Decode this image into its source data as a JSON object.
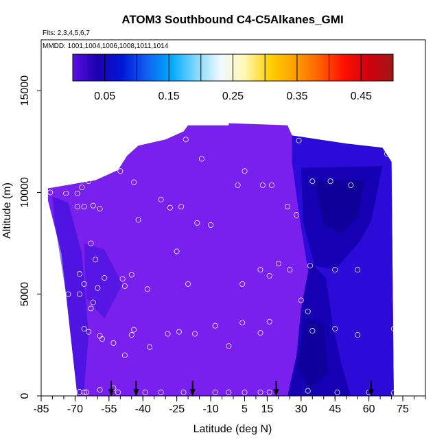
{
  "chart_data": {
    "type": "heatmap",
    "title": "ATOM3 Southbound C4-C5Alkanes_GMI",
    "flights_label": "Flts: 2,3,4,5,6,7",
    "dates_label": "MMDD: 1001,1004,1006,1008,1011,1014",
    "xlabel": "Latitude (deg N)",
    "ylabel": "Altitude (m)",
    "xlim": [
      -85,
      85
    ],
    "ylim": [
      0,
      17500
    ],
    "x_ticks": [
      -85,
      -70,
      -55,
      -40,
      -25,
      -10,
      5,
      15,
      30,
      45,
      60,
      75
    ],
    "y_ticks": [
      0,
      5000,
      10000,
      15000
    ],
    "colorbar": {
      "range": [
        0,
        0.5
      ],
      "tick_values": [
        0.05,
        0.15,
        0.25,
        0.35,
        0.45
      ],
      "tick_labels": [
        "0.05",
        "0.15",
        "0.25",
        "0.35",
        "0.45"
      ],
      "colors": [
        "#5a10e0",
        "#1a00b0",
        "#0018d8",
        "#1060f0",
        "#00aaff",
        "#80d8ff",
        "#f0f8ff",
        "#fff8b0",
        "#ffd000",
        "#ffa000",
        "#ff6000",
        "#ff1000",
        "#d00010",
        "#a01818"
      ]
    },
    "field_colors": {
      "background": "#7a20ee",
      "low": "#2c0bd8",
      "lower": "#1500b4",
      "lowest": "#0c0090"
    },
    "arrow_latitudes": [
      -54,
      -43,
      -18,
      19,
      61
    ],
    "sample_points": [
      [
        -81,
        10000
      ],
      [
        -74,
        9950
      ],
      [
        -69,
        9950
      ],
      [
        -67,
        10250
      ],
      [
        -64,
        10550
      ],
      [
        -59,
        10950
      ],
      [
        -50,
        11050
      ],
      [
        -44,
        10500
      ],
      [
        -69,
        9300
      ],
      [
        -66,
        9300
      ],
      [
        -62,
        9350
      ],
      [
        -59,
        9200
      ],
      [
        -32,
        9650
      ],
      [
        -28,
        9250
      ],
      [
        -23,
        9300
      ],
      [
        -42,
        8650
      ],
      [
        -16,
        8500
      ],
      [
        -10,
        8400
      ],
      [
        -14,
        11650
      ],
      [
        -21,
        12600
      ],
      [
        2,
        10350
      ],
      [
        5,
        11050
      ],
      [
        13,
        10350
      ],
      [
        17,
        10350
      ],
      [
        29,
        12550
      ],
      [
        24,
        9300
      ],
      [
        28,
        8900
      ],
      [
        35,
        10550
      ],
      [
        43,
        10550
      ],
      [
        52,
        10350
      ],
      [
        68,
        11900
      ],
      [
        -25,
        7100
      ],
      [
        -63,
        7500
      ],
      [
        -61,
        6700
      ],
      [
        -68,
        6000
      ],
      [
        -66,
        5500
      ],
      [
        -57,
        5800
      ],
      [
        -49,
        5750
      ],
      [
        -45,
        5950
      ],
      [
        -60,
        5300
      ],
      [
        -48,
        5400
      ],
      [
        -38,
        5250
      ],
      [
        -73,
        5000
      ],
      [
        -68,
        5000
      ],
      [
        -62,
        4600
      ],
      [
        -63,
        4300
      ],
      [
        -20,
        5500
      ],
      [
        4,
        5500
      ],
      [
        12,
        6200
      ],
      [
        16,
        5900
      ],
      [
        20,
        6500
      ],
      [
        25,
        6200
      ],
      [
        34,
        6400
      ],
      [
        45,
        6200
      ],
      [
        55,
        6200
      ],
      [
        30,
        4700
      ],
      [
        33,
        4150
      ],
      [
        4,
        3600
      ],
      [
        16,
        3650
      ],
      [
        -8,
        3450
      ],
      [
        -66,
        3300
      ],
      [
        -64,
        3150
      ],
      [
        -44,
        3250
      ],
      [
        -45,
        3000
      ],
      [
        -59,
        2950
      ],
      [
        -58,
        2800
      ],
      [
        -29,
        3050
      ],
      [
        -24,
        3150
      ],
      [
        -17,
        3050
      ],
      [
        12,
        3100
      ],
      [
        35,
        3200
      ],
      [
        45,
        3300
      ],
      [
        55,
        3000
      ],
      [
        71,
        3300
      ],
      [
        -2,
        2450
      ],
      [
        -37,
        2400
      ],
      [
        -53,
        2600
      ],
      [
        -48,
        2000
      ],
      [
        -71,
        200
      ],
      [
        -68,
        200
      ],
      [
        -66,
        180
      ],
      [
        -65,
        180
      ],
      [
        -59,
        300
      ],
      [
        -53,
        380
      ],
      [
        -51,
        180
      ],
      [
        -39,
        180
      ],
      [
        -32,
        180
      ],
      [
        -22,
        180
      ],
      [
        -8,
        180
      ],
      [
        -2,
        180
      ],
      [
        5,
        180
      ],
      [
        12,
        180
      ],
      [
        16,
        180
      ],
      [
        33,
        250
      ],
      [
        46,
        180
      ],
      [
        60,
        180
      ],
      [
        71,
        150
      ]
    ]
  }
}
